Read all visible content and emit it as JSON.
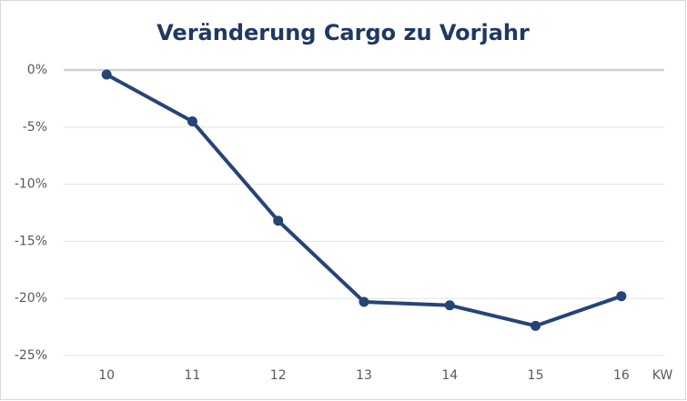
{
  "chart_data": {
    "type": "line",
    "title": "Veränderung Cargo zu Vorjahr",
    "x_label": "KW",
    "categories": [
      "10",
      "11",
      "12",
      "13",
      "14",
      "15",
      "16"
    ],
    "values": [
      -0.4,
      -4.5,
      -13.2,
      -20.3,
      -20.6,
      -22.4,
      -19.8
    ],
    "color": "#264478",
    "ylim": [
      -25,
      0
    ],
    "yticks": [
      {
        "value": 0,
        "label": "0%"
      },
      {
        "value": -5,
        "label": "-5%"
      },
      {
        "value": -10,
        "label": "-10%"
      },
      {
        "value": -15,
        "label": "-15%"
      },
      {
        "value": -20,
        "label": "-20%"
      },
      {
        "value": -25,
        "label": "-25%"
      }
    ],
    "grid": true
  }
}
